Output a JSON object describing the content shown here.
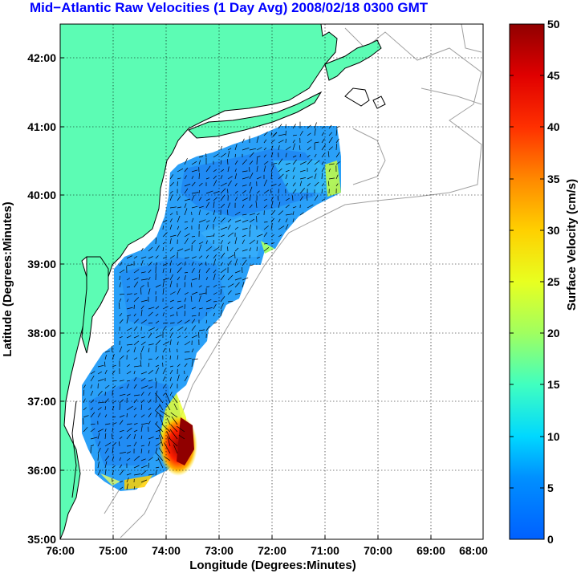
{
  "title": "Mid−Atlantic Raw Velocities (1 Day Avg) 2008/02/18 0300 GMT",
  "map": {
    "xlabel": "Longitude (Degrees:Minutes)",
    "ylabel": "Latitude (Degrees:Minutes)",
    "lon_ticks": [
      "76:00",
      "75:00",
      "74:00",
      "73:00",
      "72:00",
      "71:00",
      "70:00",
      "69:00",
      "68:00"
    ],
    "lat_ticks": [
      "42:00",
      "41:00",
      "40:00",
      "39:00",
      "38:00",
      "37:00",
      "36:00",
      "35:00"
    ],
    "lon_range": [
      -76,
      -68
    ],
    "lat_range": [
      35,
      42.5
    ],
    "land_color": "#5cfcb4",
    "coast_color": "#000000",
    "bathymetry_color": "#a0a0a0"
  },
  "colorbar": {
    "label": "Surface Velocity (cm/s)",
    "min": 0,
    "max": 50,
    "ticks": [
      "50",
      "45",
      "40",
      "35",
      "30",
      "25",
      "20",
      "15",
      "10",
      "5",
      "0"
    ],
    "colormap": [
      "#0000ff",
      "#00a0ff",
      "#00ffff",
      "#60ff90",
      "#ffff00",
      "#ff8000",
      "#ff0000",
      "#800000"
    ]
  }
}
